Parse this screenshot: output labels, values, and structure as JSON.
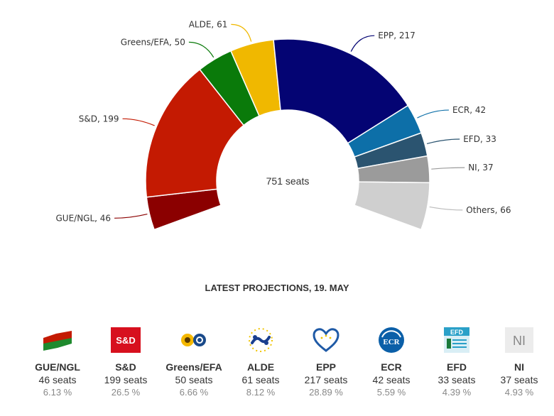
{
  "chart_data": {
    "type": "pie",
    "variant": "semicircle-donut",
    "center_label": "751 seats",
    "subtitle": "LATEST PROJECTIONS, 19. MAY",
    "slices": [
      {
        "name": "GUE/NGL",
        "value": 46,
        "color": "#8b0000",
        "label": "GUE/NGL, 46"
      },
      {
        "name": "S&D",
        "value": 199,
        "color": "#c41a02",
        "label": "S&D, 199"
      },
      {
        "name": "Greens/EFA",
        "value": 50,
        "color": "#0a7a0a",
        "label": "Greens/EFA, 50"
      },
      {
        "name": "ALDE",
        "value": 61,
        "color": "#f0b800",
        "label": "ALDE, 61"
      },
      {
        "name": "EPP",
        "value": 217,
        "color": "#040473",
        "label": "EPP, 217"
      },
      {
        "name": "ECR",
        "value": 42,
        "color": "#0d6fa8",
        "label": "ECR, 42"
      },
      {
        "name": "EFD",
        "value": 33,
        "color": "#2b5470",
        "label": "EFD, 33"
      },
      {
        "name": "NI",
        "value": 37,
        "color": "#9b9b9b",
        "label": "NI, 37"
      },
      {
        "name": "Others",
        "value": 66,
        "color": "#cfcfcf",
        "label": "Others, 66"
      }
    ]
  },
  "parties": [
    {
      "name": "GUE/NGL",
      "seats": "46 seats",
      "pct": "6.13 %",
      "logo_icon": "gue-ngl-flag-icon"
    },
    {
      "name": "S&D",
      "seats": "199 seats",
      "pct": "26.5 %",
      "logo_icon": "sd-logo-icon",
      "logo_text": "S&D"
    },
    {
      "name": "Greens/EFA",
      "seats": "50 seats",
      "pct": "6.66 %",
      "logo_icon": "greens-sunflower-icon"
    },
    {
      "name": "ALDE",
      "seats": "61 seats",
      "pct": "8.12 %",
      "logo_icon": "alde-stars-icon"
    },
    {
      "name": "EPP",
      "seats": "217 seats",
      "pct": "28.89 %",
      "logo_icon": "epp-heart-icon"
    },
    {
      "name": "ECR",
      "seats": "42 seats",
      "pct": "5.59 %",
      "logo_icon": "ecr-logo-icon",
      "logo_text": "ECR"
    },
    {
      "name": "EFD",
      "seats": "33 seats",
      "pct": "4.39 %",
      "logo_icon": "efd-logo-icon",
      "logo_text": "EFD"
    },
    {
      "name": "NI",
      "seats": "37 seats",
      "pct": "4.93 %",
      "logo_icon": "ni-logo-icon",
      "logo_text": "NI"
    }
  ]
}
